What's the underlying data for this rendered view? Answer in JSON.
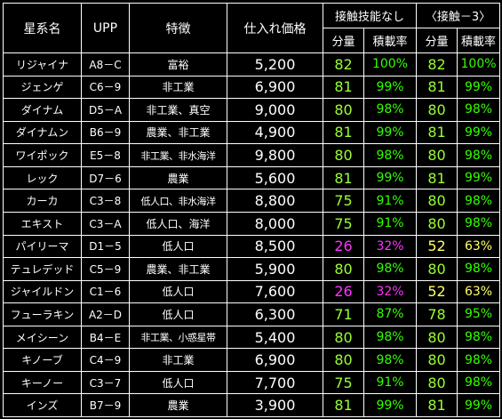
{
  "headers": {
    "star_system": "星系名",
    "upp": "UPP",
    "features": "特徴",
    "price": "仕入れ価格",
    "group_no_skill": "接触技能なし",
    "group_contact_minus3": "〈接触－3〉",
    "quantity": "分量",
    "load_rate": "積載率"
  },
  "colors": {
    "quantity_normal": "#99ff33",
    "rate_normal": "#33ff00",
    "low": "#ff33ff",
    "medium": "#ffff66"
  },
  "rows": [
    {
      "name": "リジャイナ",
      "upp": "A8－C",
      "features": "富裕",
      "price": "5,200",
      "q1": "82",
      "r1": "100%",
      "q2": "82",
      "r2": "100%",
      "c1": "normal",
      "c2": "normal"
    },
    {
      "name": "ジェンゲ",
      "upp": "C6－9",
      "features": "非工業",
      "price": "6,900",
      "q1": "81",
      "r1": "99%",
      "q2": "81",
      "r2": "99%",
      "c1": "normal",
      "c2": "normal"
    },
    {
      "name": "ダイナム",
      "upp": "D5－A",
      "features": "非工業、真空",
      "price": "9,000",
      "q1": "80",
      "r1": "98%",
      "q2": "80",
      "r2": "98%",
      "c1": "normal",
      "c2": "normal"
    },
    {
      "name": "ダイナムン",
      "upp": "B6－9",
      "features": "農業、非工業",
      "price": "4,900",
      "q1": "81",
      "r1": "99%",
      "q2": "81",
      "r2": "99%",
      "c1": "normal",
      "c2": "normal"
    },
    {
      "name": "ワイポック",
      "upp": "E5－8",
      "features": "非工業、非水海洋",
      "price": "9,800",
      "q1": "80",
      "r1": "98%",
      "q2": "80",
      "r2": "98%",
      "c1": "normal",
      "c2": "normal"
    },
    {
      "name": "レック",
      "upp": "D7－6",
      "features": "農業",
      "price": "5,600",
      "q1": "81",
      "r1": "99%",
      "q2": "81",
      "r2": "99%",
      "c1": "normal",
      "c2": "normal"
    },
    {
      "name": "カーカ",
      "upp": "C3－8",
      "features": "低人口、非水海洋",
      "price": "8,800",
      "q1": "75",
      "r1": "91%",
      "q2": "80",
      "r2": "98%",
      "c1": "normal",
      "c2": "normal"
    },
    {
      "name": "エキスト",
      "upp": "C3－A",
      "features": "低人口、海洋",
      "price": "8,000",
      "q1": "75",
      "r1": "91%",
      "q2": "80",
      "r2": "98%",
      "c1": "normal",
      "c2": "normal"
    },
    {
      "name": "パイリーマ",
      "upp": "D1－5",
      "features": "低人口",
      "price": "8,500",
      "q1": "26",
      "r1": "32%",
      "q2": "52",
      "r2": "63%",
      "c1": "low",
      "c2": "medium"
    },
    {
      "name": "テュレデッド",
      "upp": "C5－9",
      "features": "農業、非工業",
      "price": "5,900",
      "q1": "80",
      "r1": "98%",
      "q2": "80",
      "r2": "98%",
      "c1": "normal",
      "c2": "normal"
    },
    {
      "name": "ジャイルドン",
      "upp": "C1－6",
      "features": "低人口",
      "price": "7,600",
      "q1": "26",
      "r1": "32%",
      "q2": "52",
      "r2": "63%",
      "c1": "low",
      "c2": "medium"
    },
    {
      "name": "フューラキン",
      "upp": "A2－D",
      "features": "低人口",
      "price": "6,300",
      "q1": "71",
      "r1": "87%",
      "q2": "78",
      "r2": "95%",
      "c1": "normal",
      "c2": "normal"
    },
    {
      "name": "メイシーン",
      "upp": "B4－E",
      "features": "非工業、小惑星帯",
      "price": "5,400",
      "q1": "80",
      "r1": "98%",
      "q2": "80",
      "r2": "98%",
      "c1": "normal",
      "c2": "normal"
    },
    {
      "name": "キノーブ",
      "upp": "C4－9",
      "features": "非工業",
      "price": "6,900",
      "q1": "80",
      "r1": "98%",
      "q2": "80",
      "r2": "98%",
      "c1": "normal",
      "c2": "normal"
    },
    {
      "name": "キーノー",
      "upp": "C3－7",
      "features": "低人口",
      "price": "7,700",
      "q1": "75",
      "r1": "91%",
      "q2": "80",
      "r2": "98%",
      "c1": "normal",
      "c2": "normal"
    },
    {
      "name": "インズ",
      "upp": "B7－9",
      "features": "農業",
      "price": "3,900",
      "q1": "81",
      "r1": "99%",
      "q2": "81",
      "r2": "99%",
      "c1": "normal",
      "c2": "normal"
    }
  ]
}
